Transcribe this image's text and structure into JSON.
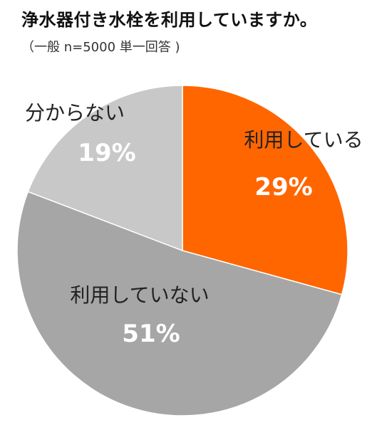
{
  "title": "浄水器付き水栓を利用していますか。",
  "subtitle": "（一般 n=5000 単一回答 )",
  "chart_data": {
    "type": "pie",
    "title": "浄水器付き水栓を利用していますか。",
    "subtitle": "（一般 n=5000 単一回答 )",
    "start": "12 o'clock",
    "direction": "clockwise",
    "slices": [
      {
        "label": "利用している",
        "value": 29,
        "display": "29%",
        "color": "#ff6600"
      },
      {
        "label": "利用していない",
        "value": 51,
        "display": "51%",
        "color": "#a6a6a6"
      },
      {
        "label": "分からない",
        "value": 19,
        "display": "19%",
        "color": "#c8c8c8"
      }
    ]
  }
}
